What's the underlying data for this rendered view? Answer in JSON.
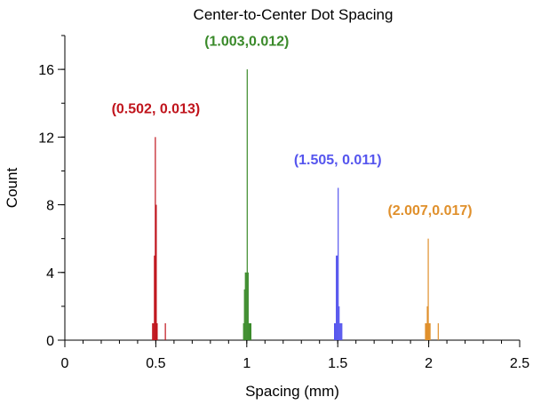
{
  "chart_data": {
    "type": "bar",
    "title": "Center-to-Center Dot Spacing",
    "xlabel": "Spacing (mm)",
    "ylabel": "Count",
    "xlim": [
      0,
      2.5
    ],
    "ylim": [
      0,
      18
    ],
    "x_ticks": [
      0,
      0.5,
      1,
      1.5,
      2,
      2.5
    ],
    "x_tick_labels": [
      "0",
      "0.5",
      "1",
      "1.5",
      "2",
      "2.5"
    ],
    "x_minor_step": 0.1,
    "y_ticks": [
      0,
      4,
      8,
      12,
      16
    ],
    "y_tick_labels": [
      "0",
      "4",
      "8",
      "12",
      "16"
    ],
    "y_minor_step": 2,
    "grid": false,
    "bin_width": 0.005,
    "series": [
      {
        "color": "#c0141c",
        "bars": [
          [
            0.482,
            1
          ],
          [
            0.487,
            1
          ],
          [
            0.492,
            5
          ],
          [
            0.497,
            12
          ],
          [
            0.502,
            8
          ],
          [
            0.507,
            1
          ],
          [
            0.552,
            1
          ]
        ]
      },
      {
        "color": "#3a8a2a",
        "bars": [
          [
            0.982,
            1
          ],
          [
            0.987,
            3
          ],
          [
            0.992,
            4
          ],
          [
            0.997,
            4
          ],
          [
            1.002,
            16
          ],
          [
            1.007,
            4
          ],
          [
            1.012,
            1
          ],
          [
            1.017,
            1
          ],
          [
            1.022,
            1
          ]
        ]
      },
      {
        "color": "#5555ee",
        "bars": [
          [
            1.482,
            1
          ],
          [
            1.487,
            1
          ],
          [
            1.492,
            5
          ],
          [
            1.497,
            5
          ],
          [
            1.502,
            9
          ],
          [
            1.507,
            2
          ],
          [
            1.512,
            1
          ],
          [
            1.517,
            1
          ],
          [
            1.522,
            1
          ]
        ]
      },
      {
        "color": "#e0902c",
        "bars": [
          [
            1.982,
            1
          ],
          [
            1.987,
            1
          ],
          [
            1.992,
            2
          ],
          [
            1.997,
            6
          ],
          [
            2.002,
            1
          ],
          [
            2.007,
            1
          ],
          [
            2.052,
            1
          ]
        ]
      }
    ],
    "annotations": [
      {
        "text": "(0.502, 0.013)",
        "x": 0.5,
        "y": 13.4,
        "color": "#c0141c"
      },
      {
        "text": "(1.003,0.012)",
        "x": 1.0,
        "y": 17.4,
        "color": "#3a8a2a"
      },
      {
        "text": "(1.505, 0.011)",
        "x": 1.5,
        "y": 10.4,
        "color": "#5555ee"
      },
      {
        "text": "(2.007,0.017)",
        "x": 2.007,
        "y": 7.4,
        "color": "#e0902c"
      }
    ]
  }
}
